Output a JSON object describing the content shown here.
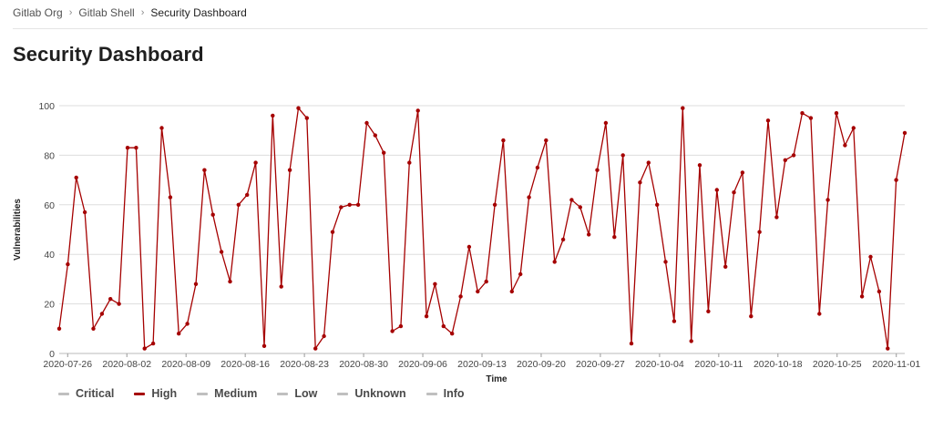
{
  "breadcrumb": {
    "items": [
      "Gitlab Org",
      "Gitlab Shell",
      "Security Dashboard"
    ],
    "separator": "›"
  },
  "page": {
    "title": "Security Dashboard"
  },
  "colors": {
    "high": "#a50000",
    "inactive": "#bfbfbf",
    "grid": "#dddddd",
    "axis": "#444444"
  },
  "legend": [
    {
      "label": "Critical",
      "active": false
    },
    {
      "label": "High",
      "active": true
    },
    {
      "label": "Medium",
      "active": false
    },
    {
      "label": "Low",
      "active": false
    },
    {
      "label": "Unknown",
      "active": false
    },
    {
      "label": "Info",
      "active": false
    }
  ],
  "chart_data": {
    "type": "line",
    "xlabel": "Time",
    "ylabel": "Vulnerabilities",
    "ylim": [
      0,
      100
    ],
    "yticks": [
      0,
      20,
      40,
      60,
      80,
      100
    ],
    "xlim": [
      "2020-07-25",
      "2020-11-02"
    ],
    "xticks": [
      "2020-07-26",
      "2020-08-02",
      "2020-08-09",
      "2020-08-16",
      "2020-08-23",
      "2020-08-30",
      "2020-09-06",
      "2020-09-13",
      "2020-09-20",
      "2020-09-27",
      "2020-10-04",
      "2020-10-11",
      "2020-10-18",
      "2020-10-25",
      "2020-11-01"
    ],
    "grid": true,
    "legend_position": "bottom-left",
    "x_start": "2020-07-25",
    "x_end": "2020-11-02",
    "series": [
      {
        "name": "High",
        "values": [
          10,
          36,
          71,
          57,
          10,
          16,
          22,
          20,
          83,
          83,
          2,
          4,
          91,
          63,
          8,
          12,
          28,
          74,
          56,
          41,
          29,
          60,
          64,
          77,
          3,
          96,
          27,
          74,
          99,
          95,
          2,
          7,
          49,
          59,
          60,
          60,
          93,
          88,
          81,
          9,
          11,
          77,
          98,
          15,
          28,
          11,
          8,
          23,
          43,
          25,
          29,
          60,
          86,
          25,
          32,
          63,
          75,
          86,
          37,
          46,
          62,
          59,
          48,
          74,
          93,
          47,
          80,
          4,
          69,
          77,
          60,
          37,
          13,
          99,
          5,
          76,
          17,
          66,
          35,
          65,
          73,
          15,
          49,
          94,
          55,
          78,
          80,
          97,
          95,
          16,
          62,
          97,
          84,
          91,
          23,
          39,
          25,
          2,
          70,
          89
        ]
      }
    ]
  }
}
